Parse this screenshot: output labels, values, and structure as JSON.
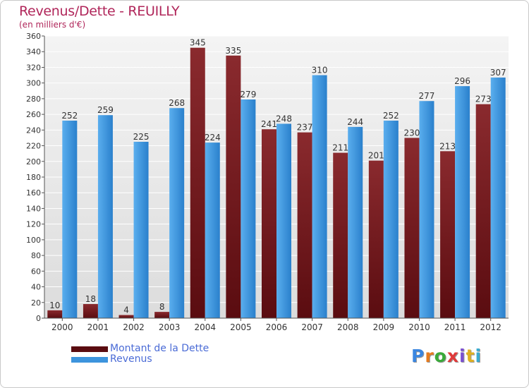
{
  "title": "Revenus/Dette - REUILLY",
  "subtitle": "(en milliers d'€)",
  "brand": {
    "letters": [
      "P",
      "r",
      "o",
      "x",
      "i",
      "t",
      "i"
    ],
    "colors": [
      "#3a86e0",
      "#e57b1f",
      "#3aaa3a",
      "#e03a3a",
      "#7a4fd0",
      "#e0b020",
      "#3aaad0"
    ]
  },
  "chart_data": {
    "type": "bar",
    "categories": [
      "2000",
      "2001",
      "2002",
      "2003",
      "2004",
      "2005",
      "2006",
      "2007",
      "2008",
      "2009",
      "2010",
      "2011",
      "2012"
    ],
    "series": [
      {
        "name": "Montant de la Dette",
        "color": "#7a1e22",
        "values": [
          10,
          18,
          4,
          8,
          345,
          335,
          241,
          237,
          211,
          201,
          230,
          213,
          273
        ]
      },
      {
        "name": "Revenus",
        "color": "#3d94dd",
        "values": [
          252,
          259,
          225,
          268,
          224,
          279,
          248,
          310,
          244,
          252,
          277,
          296,
          307
        ]
      }
    ],
    "yticks": [
      "0",
      "20",
      "40",
      "60",
      "80",
      "100",
      "120",
      "140",
      "160",
      "180",
      "200",
      "220",
      "240",
      "260",
      "280",
      "300",
      "320",
      "340",
      "360"
    ],
    "ylim": [
      0,
      360
    ],
    "grid": true,
    "legend": "bottom-left"
  }
}
